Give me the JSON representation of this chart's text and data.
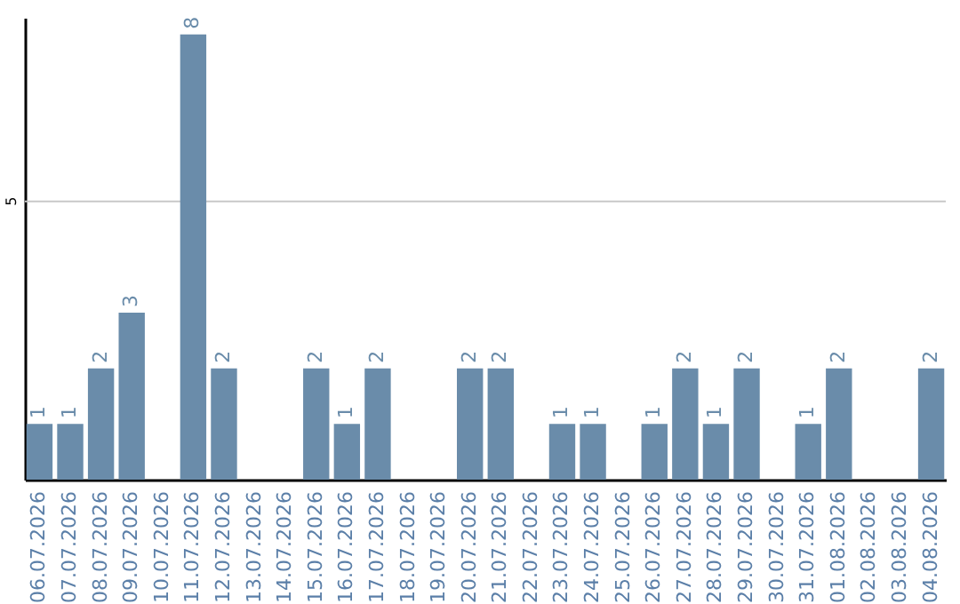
{
  "chart_data": {
    "type": "bar",
    "categories": [
      "06.07.2026",
      "07.07.2026",
      "08.07.2026",
      "09.07.2026",
      "10.07.2026",
      "11.07.2026",
      "12.07.2026",
      "13.07.2026",
      "14.07.2026",
      "15.07.2026",
      "16.07.2026",
      "17.07.2026",
      "18.07.2026",
      "19.07.2026",
      "20.07.2026",
      "21.07.2026",
      "22.07.2026",
      "23.07.2026",
      "24.07.2026",
      "25.07.2026",
      "26.07.2026",
      "27.07.2026",
      "28.07.2026",
      "29.07.2026",
      "30.07.2026",
      "31.07.2026",
      "01.08.2026",
      "02.08.2026",
      "03.08.2026",
      "04.08.2026"
    ],
    "values": [
      1,
      1,
      2,
      3,
      null,
      8,
      2,
      null,
      null,
      2,
      1,
      2,
      null,
      null,
      2,
      2,
      null,
      1,
      1,
      null,
      1,
      2,
      1,
      2,
      null,
      1,
      2,
      null,
      null,
      2
    ],
    "color": "#6a8caa",
    "ylim": [
      0,
      8.3
    ],
    "ref_lines": [
      {
        "axis": "y",
        "value": 5,
        "label": "5",
        "color": "#c8c8c8"
      }
    ],
    "data_labels": true
  }
}
